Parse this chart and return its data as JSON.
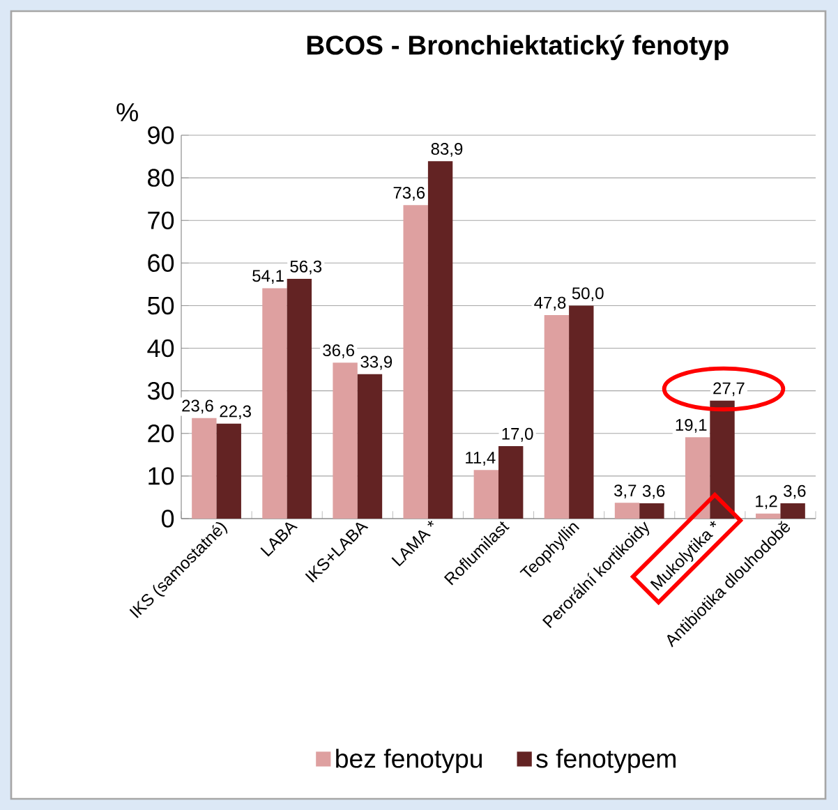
{
  "chart_data": {
    "type": "bar",
    "title": "BCOS - Bronchiektatický fenotyp",
    "ylabel": "%",
    "categories": [
      "IKS (samostatné)",
      "LABA",
      "IKS+LABA",
      "LAMA *",
      "Roflumilast",
      "Teophyllin",
      "Perorální kortikoidy",
      "Mukolytika *",
      "Antibiotika dlouhodobě"
    ],
    "series": [
      {
        "name": "bez fenotypu",
        "color": "#dea0a0",
        "values": [
          23.6,
          54.1,
          36.6,
          73.6,
          11.4,
          47.8,
          3.7,
          19.1,
          1.2
        ],
        "value_labels": [
          "23,6",
          "54,1",
          "36,6",
          "73,6",
          "11,4",
          "47,8",
          "3,7",
          "19,1",
          "1,2"
        ]
      },
      {
        "name": "s fenotypem",
        "color": "#632323",
        "values": [
          22.3,
          56.3,
          33.9,
          83.9,
          17.0,
          50.0,
          3.6,
          27.7,
          3.6
        ],
        "value_labels": [
          "22,3",
          "56,3",
          "33,9",
          "83,9",
          "17,0",
          "50,0",
          "3,6",
          "27,7",
          "3,6"
        ]
      }
    ],
    "ylim": [
      0,
      90
    ],
    "yticks": [
      0,
      10,
      20,
      30,
      40,
      50,
      60,
      70,
      80,
      90
    ],
    "grid": "y",
    "legend": "bottom"
  }
}
